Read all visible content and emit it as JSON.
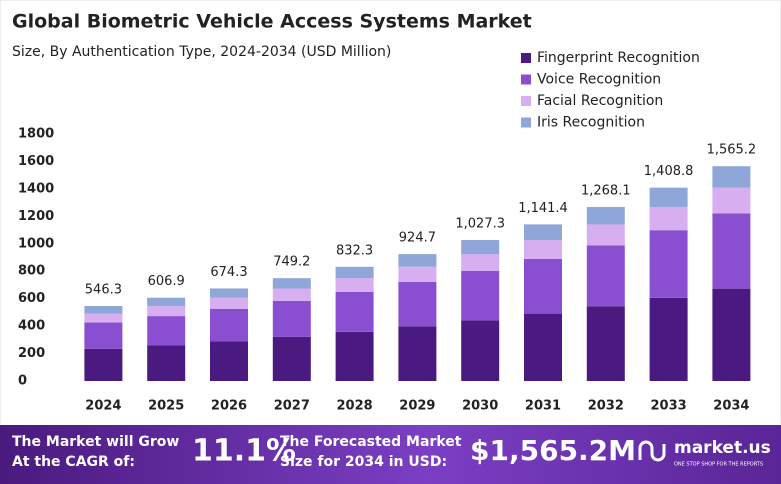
{
  "chart_data": {
    "type": "stacked_bar",
    "title": "Global Biometric Vehicle Access Systems Market",
    "subtitle": "Size, By Authentication Type, 2024-2034 (USD Million)",
    "categories": [
      "2024",
      "2025",
      "2026",
      "2027",
      "2028",
      "2029",
      "2030",
      "2031",
      "2032",
      "2033",
      "2034"
    ],
    "series": [
      {
        "name": "Fingerprint Recognition",
        "color": "#4b1a80",
        "values": [
          235,
          261,
          290,
          322,
          358,
          398,
          442,
          491,
          545,
          606,
          673
        ]
      },
      {
        "name": "Voice Recognition",
        "color": "#8a4fd0",
        "values": [
          191,
          212,
          236,
          262,
          291,
          324,
          360,
          399,
          444,
          493,
          548
        ]
      },
      {
        "name": "Facial Recognition",
        "color": "#d7aef0",
        "values": [
          66,
          73,
          81,
          90,
          100,
          111,
          123,
          137,
          152,
          169,
          188
        ]
      },
      {
        "name": "Iris Recognition",
        "color": "#8ea6d8",
        "values": [
          54.3,
          60.9,
          67.3,
          75.2,
          83.3,
          91.7,
          102.3,
          114.4,
          127.1,
          140.8,
          156.2
        ]
      }
    ],
    "totals": [
      546.3,
      606.9,
      674.3,
      749.2,
      832.3,
      924.7,
      1027.3,
      1141.4,
      1268.1,
      1408.8,
      1565.2
    ],
    "total_labels": [
      "546.3",
      "606.9",
      "674.3",
      "749.2",
      "832.3",
      "924.7",
      "1,027.3",
      "1,141.4",
      "1,268.1",
      "1,408.8",
      "1,565.2"
    ],
    "ylim": [
      0,
      1800
    ],
    "yticks": [
      0,
      200,
      400,
      600,
      800,
      1000,
      1200,
      1400,
      1600,
      1800
    ],
    "legend": "top-right"
  },
  "footer": {
    "cagr_lines": [
      "The Market will Grow",
      "At the CAGR of:"
    ],
    "cagr": "11.1%",
    "forecast_lines": [
      "The Forecasted Market",
      "Size for 2034 in USD:"
    ],
    "forecast": "$1,565.2M",
    "brand": "market.us",
    "tagline": "ONE STOP SHOP FOR THE REPORTS"
  }
}
